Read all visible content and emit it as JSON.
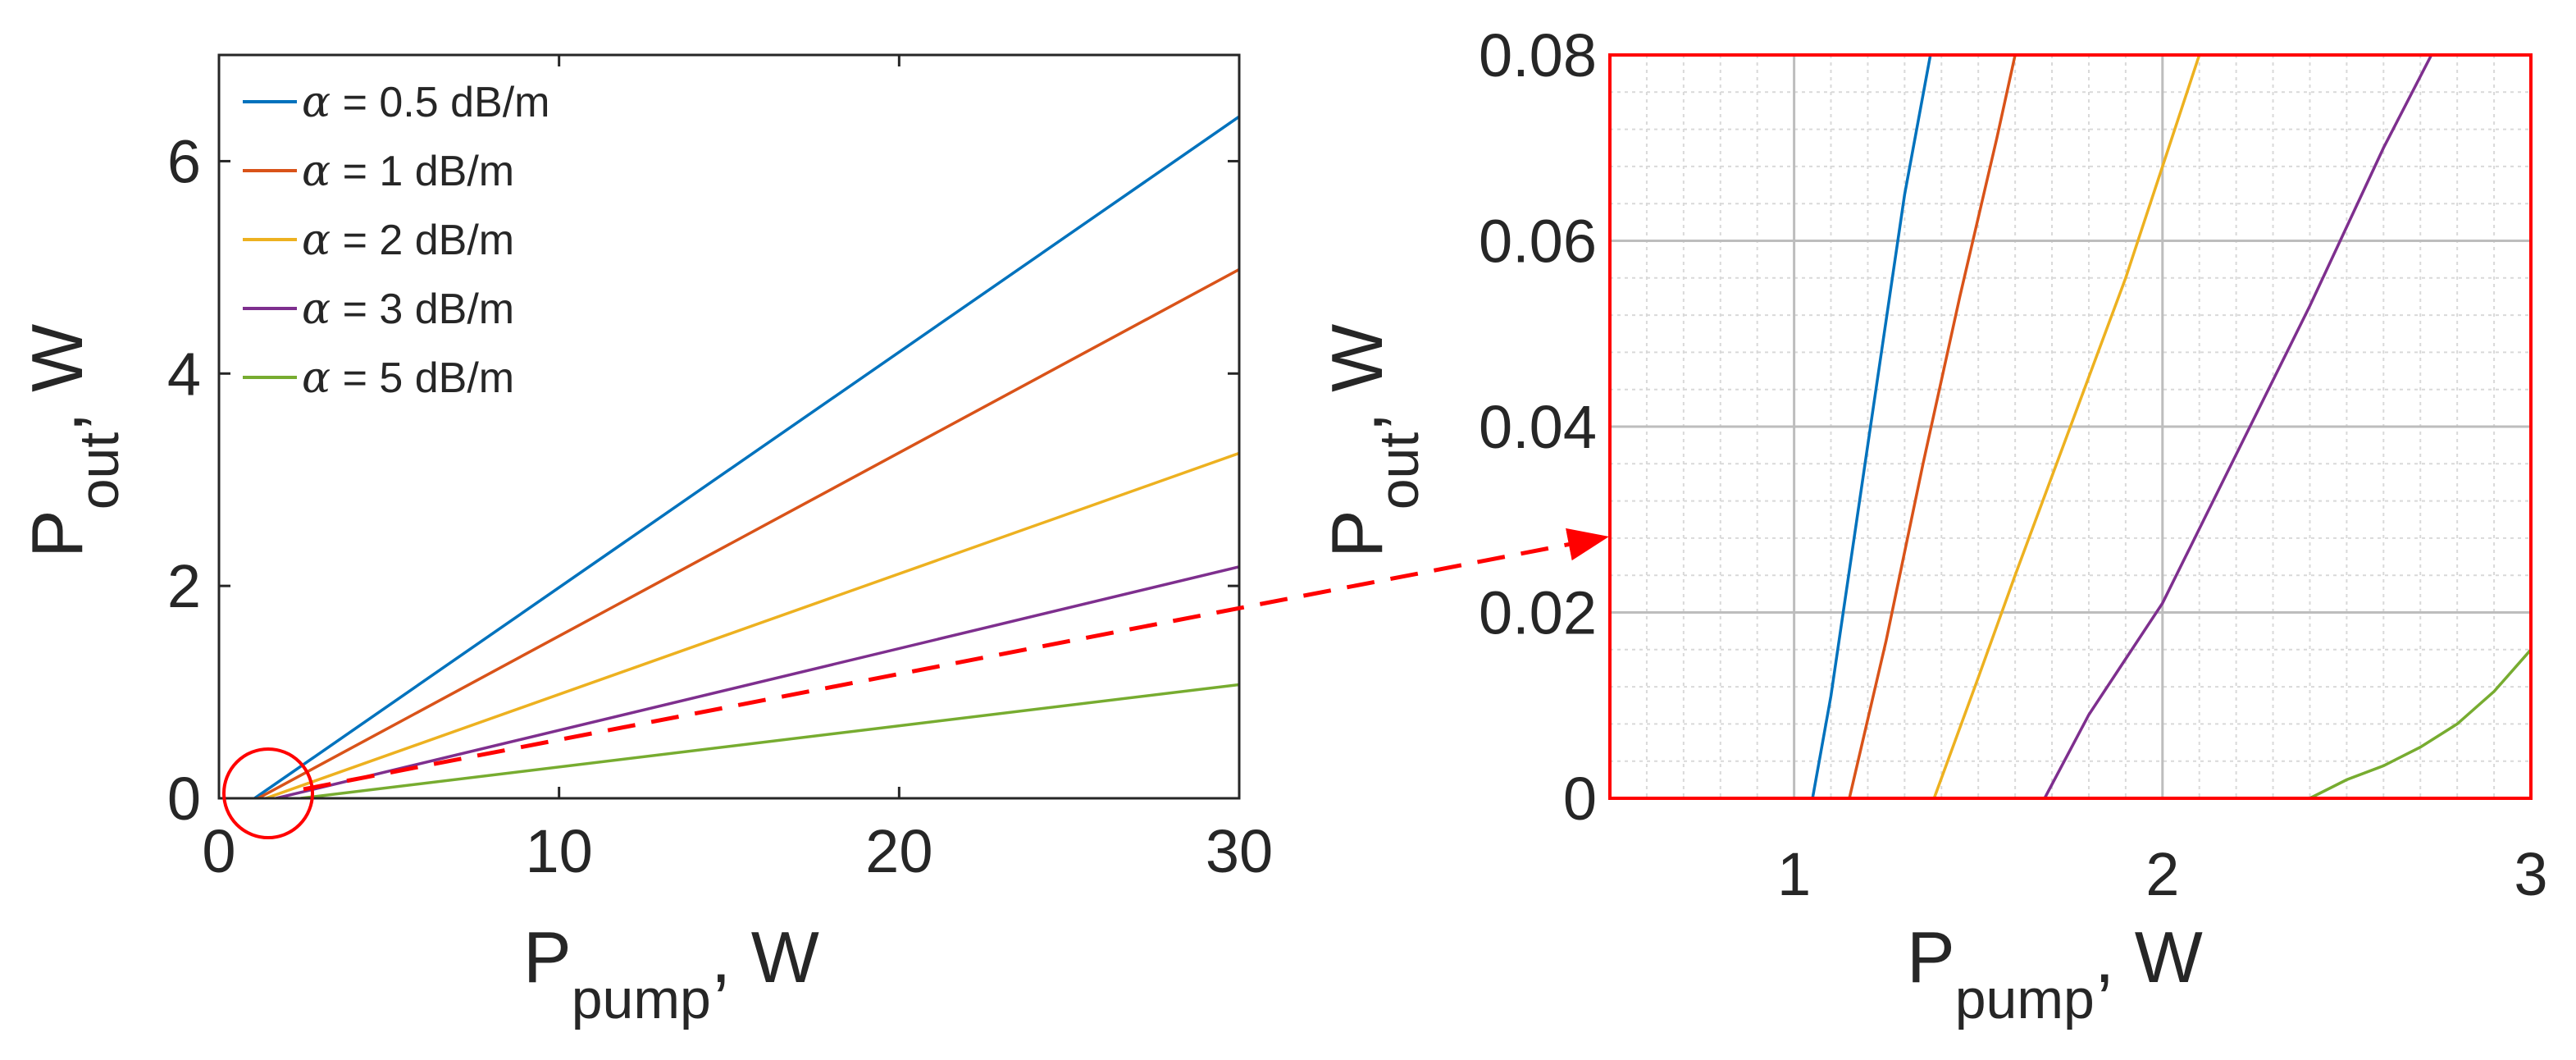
{
  "chart_data": [
    {
      "type": "line",
      "title": "",
      "xlabel": "P",
      "xlabel_sub": "pump",
      "xlabel_tail": ", W",
      "ylabel": "P",
      "ylabel_sub": "out",
      "ylabel_tail": ", W",
      "xlim": [
        0,
        30
      ],
      "ylim": [
        0,
        7
      ],
      "xticks": [
        0,
        10,
        20,
        30
      ],
      "xtick_labels": [
        "0",
        "10",
        "20",
        "30"
      ],
      "yticks": [
        0,
        2,
        4,
        6
      ],
      "ytick_labels": [
        "0",
        "2",
        "4",
        "6"
      ],
      "grid": false,
      "legend": "top-left",
      "annotation": "zoom circle around origin with dashed arrow to right panel",
      "series": [
        {
          "name": "α = 0.5 dB/m",
          "legend_symbol": "α",
          "legend_text": " = 0.5 dB/m",
          "color": "#0072bd",
          "x": [
            1.05,
            30
          ],
          "y": [
            0,
            6.42
          ]
        },
        {
          "name": "α = 1 dB/m",
          "legend_symbol": "α",
          "legend_text": " = 1 dB/m",
          "color": "#d95319",
          "x": [
            1.15,
            30
          ],
          "y": [
            0,
            4.98
          ]
        },
        {
          "name": "α = 2 dB/m",
          "legend_symbol": "α",
          "legend_text": " = 2 dB/m",
          "color": "#edb120",
          "x": [
            1.38,
            30
          ],
          "y": [
            0,
            3.25
          ]
        },
        {
          "name": "α = 3 dB/m",
          "legend_symbol": "α",
          "legend_text": " = 3 dB/m",
          "color": "#7e2f8e",
          "x": [
            1.68,
            30
          ],
          "y": [
            0,
            2.18
          ]
        },
        {
          "name": "α = 5 dB/m",
          "legend_symbol": "α",
          "legend_text": " = 5 dB/m",
          "color": "#77ac30",
          "x": [
            2.4,
            30
          ],
          "y": [
            0,
            1.07
          ]
        }
      ]
    },
    {
      "type": "line",
      "title": "",
      "xlabel": "P",
      "xlabel_sub": "pump",
      "xlabel_tail": ", W",
      "ylabel": "P",
      "ylabel_sub": "out",
      "ylabel_tail": ", W",
      "xlim": [
        0.5,
        3
      ],
      "ylim": [
        0,
        0.08
      ],
      "xticks": [
        1,
        2,
        3
      ],
      "xtick_labels": [
        "1",
        "2",
        "3"
      ],
      "yticks": [
        0,
        0.02,
        0.04,
        0.06,
        0.08
      ],
      "ytick_labels": [
        "0",
        "0.02",
        "0.04",
        "0.06",
        "0.08"
      ],
      "grid": true,
      "minor_grid": true,
      "frame_color": "#ff0000",
      "series": [
        {
          "name": "α = 0.5 dB/m",
          "color": "#0072bd",
          "x": [
            0.5,
            1.05,
            1.1,
            1.2,
            1.3,
            1.37
          ],
          "y": [
            0,
            0,
            0.011,
            0.038,
            0.065,
            0.08
          ]
        },
        {
          "name": "α = 1 dB/m",
          "color": "#d95319",
          "x": [
            0.5,
            1.15,
            1.25,
            1.35,
            1.45,
            1.55,
            1.6
          ],
          "y": [
            0,
            0,
            0.017,
            0.036,
            0.054,
            0.071,
            0.08
          ]
        },
        {
          "name": "α = 2 dB/m",
          "color": "#edb120",
          "x": [
            0.5,
            1.38,
            1.5,
            1.6,
            1.75,
            1.9,
            2.0,
            2.1
          ],
          "y": [
            0,
            0,
            0.013,
            0.024,
            0.04,
            0.056,
            0.068,
            0.08
          ]
        },
        {
          "name": "α = 3 dB/m",
          "color": "#7e2f8e",
          "x": [
            0.5,
            1.68,
            1.8,
            1.9,
            2.0,
            2.2,
            2.4,
            2.6,
            2.73
          ],
          "y": [
            0,
            0,
            0.009,
            0.015,
            0.021,
            0.037,
            0.053,
            0.07,
            0.08
          ]
        },
        {
          "name": "α = 5 dB/m",
          "color": "#77ac30",
          "x": [
            0.5,
            2.4,
            2.5,
            2.6,
            2.7,
            2.8,
            2.9,
            3.0
          ],
          "y": [
            0,
            0,
            0.002,
            0.0035,
            0.0055,
            0.008,
            0.0115,
            0.016
          ]
        }
      ]
    }
  ]
}
